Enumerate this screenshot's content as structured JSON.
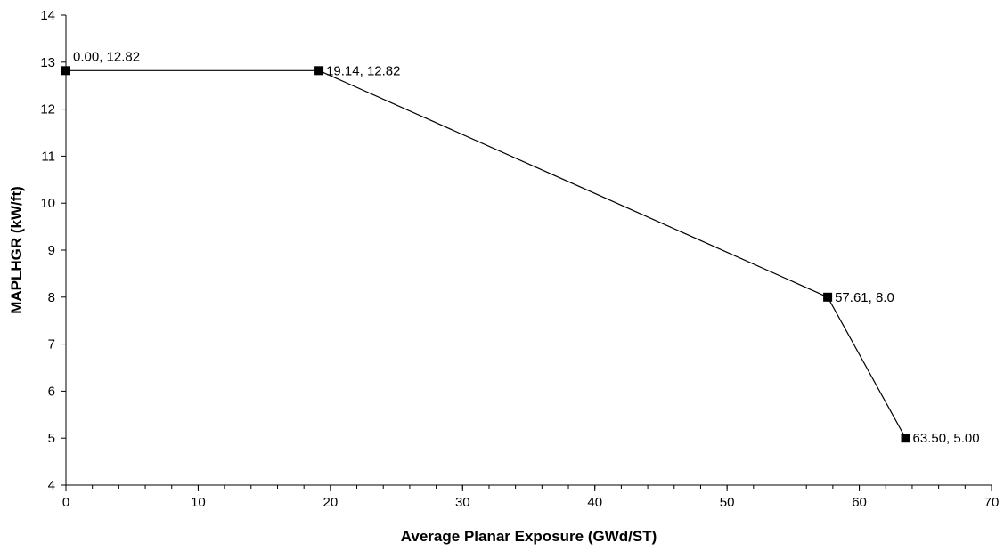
{
  "chart_data": {
    "type": "line",
    "title": "",
    "xlabel": "Average Planar Exposure (GWd/ST)",
    "ylabel": "MAPLHGR (kW/ft)",
    "xlim": [
      0,
      70
    ],
    "ylim": [
      4,
      14
    ],
    "x_major_step": 10,
    "x_minor_step": 2,
    "y_major_step": 1,
    "grid": false,
    "legend": "none",
    "x_ticks": [
      "0",
      "10",
      "20",
      "30",
      "40",
      "50",
      "60",
      "70"
    ],
    "y_ticks": [
      "4",
      "5",
      "6",
      "7",
      "8",
      "9",
      "10",
      "11",
      "12",
      "13",
      "14"
    ],
    "series": [
      {
        "color": "#000000",
        "marker": "square",
        "points": [
          {
            "x": 0.0,
            "y": 12.82,
            "label": "0.00, 12.82"
          },
          {
            "x": 19.14,
            "y": 12.82,
            "label": "19.14, 12.82"
          },
          {
            "x": 57.61,
            "y": 8.0,
            "label": "57.61, 8.0"
          },
          {
            "x": 63.5,
            "y": 5.0,
            "label": "63.50, 5.00"
          }
        ]
      }
    ]
  }
}
